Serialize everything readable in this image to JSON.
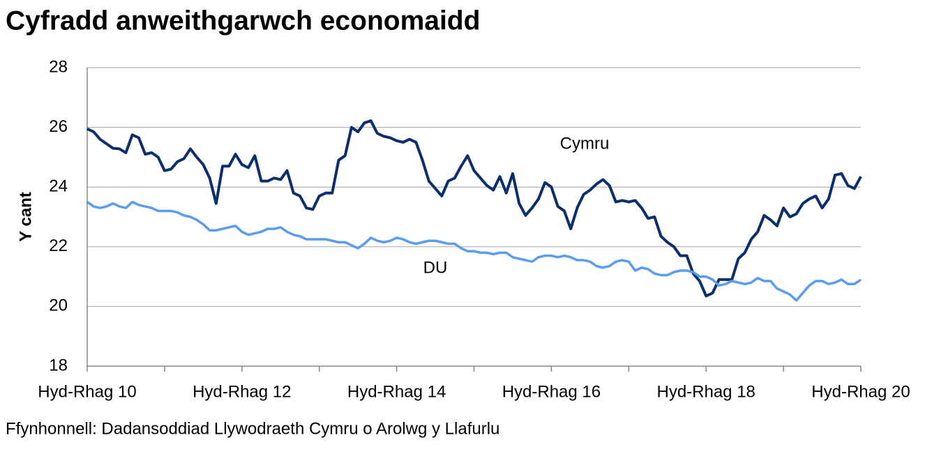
{
  "chart_data": {
    "type": "line",
    "title": "Cyfradd anweithgarwch economaidd",
    "y_label": "Y cant",
    "source": "Ffynhonnell: Dadansoddiad Llywodraeth Cymru o Arolwg y Llafurlu",
    "categories": [
      "Hyd-Rhag 10",
      null,
      null,
      null,
      null,
      null,
      null,
      null,
      null,
      null,
      null,
      null,
      null,
      null,
      null,
      null,
      null,
      null,
      null,
      null,
      null,
      null,
      null,
      null,
      "Hyd-Rhag 12",
      null,
      null,
      null,
      null,
      null,
      null,
      null,
      null,
      null,
      null,
      null,
      null,
      null,
      null,
      null,
      null,
      null,
      null,
      null,
      null,
      null,
      null,
      null,
      "Hyd-Rhag 14",
      null,
      null,
      null,
      null,
      null,
      null,
      null,
      null,
      null,
      null,
      null,
      null,
      null,
      null,
      null,
      null,
      null,
      null,
      null,
      null,
      null,
      null,
      null,
      "Hyd-Rhag 16",
      null,
      null,
      null,
      null,
      null,
      null,
      null,
      null,
      null,
      null,
      null,
      null,
      null,
      null,
      null,
      null,
      null,
      null,
      null,
      null,
      null,
      null,
      null,
      "Hyd-Rhag 18",
      null,
      null,
      null,
      null,
      null,
      null,
      null,
      null,
      null,
      null,
      null,
      null,
      null,
      null,
      null,
      null,
      null,
      null,
      null,
      null,
      null,
      null,
      null,
      "Hyd-Rhag 20"
    ],
    "series": [
      {
        "name": "Cymru",
        "color": "#0b2f6b",
        "values": [
          25.95,
          25.85,
          25.6,
          25.45,
          25.3,
          25.28,
          25.15,
          25.75,
          25.65,
          25.1,
          25.15,
          25.0,
          24.55,
          24.6,
          24.85,
          24.95,
          25.28,
          25.0,
          24.75,
          24.3,
          23.45,
          24.7,
          24.7,
          25.1,
          24.75,
          24.65,
          25.05,
          24.2,
          24.2,
          24.3,
          24.25,
          24.55,
          23.8,
          23.7,
          23.3,
          23.25,
          23.7,
          23.8,
          23.8,
          24.9,
          25.05,
          26.0,
          25.85,
          26.15,
          26.22,
          25.8,
          25.7,
          25.65,
          25.55,
          25.5,
          25.6,
          25.5,
          24.9,
          24.2,
          23.95,
          23.7,
          24.2,
          24.3,
          24.7,
          25.05,
          24.55,
          24.3,
          24.05,
          23.9,
          24.35,
          23.8,
          24.45,
          23.45,
          23.05,
          23.3,
          23.6,
          24.15,
          24.0,
          23.35,
          23.2,
          22.6,
          23.3,
          23.75,
          23.9,
          24.1,
          24.25,
          24.05,
          23.5,
          23.55,
          23.5,
          23.55,
          23.3,
          22.95,
          23.0,
          22.35,
          22.15,
          22.0,
          21.7,
          21.7,
          21.1,
          20.85,
          20.35,
          20.45,
          20.9,
          20.9,
          20.9,
          21.6,
          21.8,
          22.25,
          22.5,
          23.05,
          22.9,
          22.7,
          23.3,
          23.0,
          23.1,
          23.45,
          23.6,
          23.7,
          23.3,
          23.6,
          24.4,
          24.45,
          24.05,
          23.95,
          24.35
        ]
      },
      {
        "name": "DU",
        "color": "#5b9bf0",
        "values": [
          23.5,
          23.35,
          23.3,
          23.35,
          23.45,
          23.35,
          23.3,
          23.5,
          23.4,
          23.35,
          23.3,
          23.2,
          23.2,
          23.2,
          23.15,
          23.05,
          23.0,
          22.9,
          22.75,
          22.55,
          22.55,
          22.6,
          22.65,
          22.7,
          22.5,
          22.4,
          22.45,
          22.5,
          22.6,
          22.6,
          22.65,
          22.5,
          22.4,
          22.35,
          22.25,
          22.25,
          22.25,
          22.25,
          22.2,
          22.15,
          22.15,
          22.05,
          21.95,
          22.1,
          22.3,
          22.2,
          22.15,
          22.2,
          22.3,
          22.25,
          22.15,
          22.1,
          22.15,
          22.2,
          22.2,
          22.15,
          22.1,
          22.1,
          21.95,
          21.85,
          21.85,
          21.8,
          21.8,
          21.75,
          21.8,
          21.8,
          21.65,
          21.6,
          21.55,
          21.5,
          21.65,
          21.7,
          21.7,
          21.65,
          21.7,
          21.65,
          21.55,
          21.55,
          21.5,
          21.35,
          21.3,
          21.35,
          21.5,
          21.55,
          21.5,
          21.2,
          21.3,
          21.25,
          21.1,
          21.05,
          21.05,
          21.15,
          21.2,
          21.2,
          21.15,
          21.0,
          21.0,
          20.9,
          20.7,
          20.75,
          20.85,
          20.8,
          20.75,
          20.8,
          20.95,
          20.85,
          20.85,
          20.6,
          20.5,
          20.4,
          20.2,
          20.45,
          20.7,
          20.85,
          20.85,
          20.75,
          20.8,
          20.9,
          20.75,
          20.75,
          20.9
        ]
      }
    ],
    "ylim": [
      18,
      28
    ],
    "yticks": [
      18,
      20,
      22,
      24,
      26,
      28
    ],
    "grid": true
  }
}
